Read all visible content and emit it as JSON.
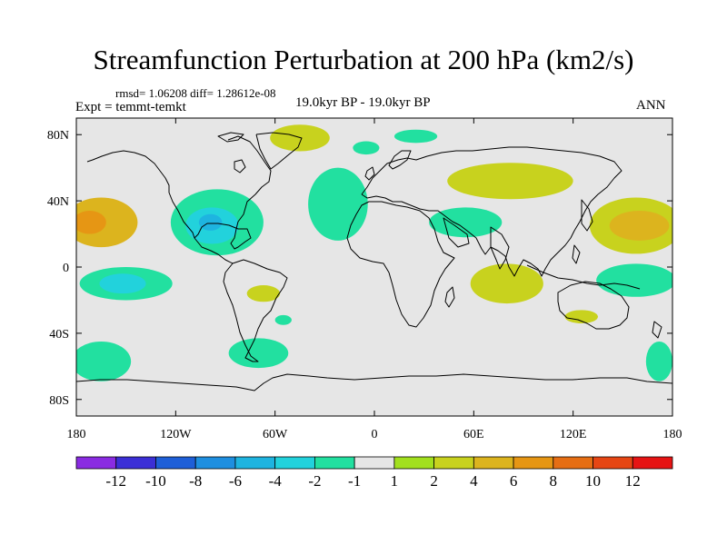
{
  "chart_data": {
    "type": "heatmap",
    "title": "Streamfunction Perturbation at 200 hPa (km2/s)",
    "stats_text": "rmsd= 1.06208 diff= 1.28612e-08",
    "experiment_text": "Expt = temmt-temkt",
    "period_text": "19.0kyr BP - 19.0kyr BP",
    "season_text": "ANN",
    "x_range": [
      -180,
      180
    ],
    "y_range": [
      -90,
      90
    ],
    "x_ticks": [
      {
        "value": -180,
        "label": "180"
      },
      {
        "value": -120,
        "label": "120W"
      },
      {
        "value": -60,
        "label": "60W"
      },
      {
        "value": 0,
        "label": "0"
      },
      {
        "value": 60,
        "label": "60E"
      },
      {
        "value": 120,
        "label": "120E"
      },
      {
        "value": 180,
        "label": "180"
      }
    ],
    "y_ticks": [
      {
        "value": 80,
        "label": "80N"
      },
      {
        "value": 40,
        "label": "40N"
      },
      {
        "value": 0,
        "label": "0"
      },
      {
        "value": -40,
        "label": "40S"
      },
      {
        "value": -80,
        "label": "80S"
      }
    ],
    "colorbar": {
      "colors": [
        "#8a2be2",
        "#3b2fd6",
        "#1e5fd8",
        "#1e8fe0",
        "#1eb4e0",
        "#22d2dc",
        "#22e0a0",
        "#e6e6e6",
        "#a2e01e",
        "#c8d21e",
        "#dcb41e",
        "#e69614",
        "#e66e14",
        "#e64614",
        "#e61414"
      ],
      "labels": [
        "-12",
        "-10",
        "-8",
        "-6",
        "-4",
        "-2",
        "-1",
        "1",
        "2",
        "4",
        "6",
        "8",
        "10",
        "12"
      ]
    },
    "anomaly_regions": [
      {
        "name": "N Pacific positive",
        "center": [
          -165,
          27
        ],
        "radius": [
          22,
          15
        ],
        "value": 4
      },
      {
        "name": "N Pacific core",
        "center": [
          -172,
          27
        ],
        "radius": [
          10,
          7
        ],
        "value": 6
      },
      {
        "name": "N America negative",
        "center": [
          -95,
          27
        ],
        "radius": [
          28,
          20
        ],
        "value": -2
      },
      {
        "name": "Gulf core",
        "center": [
          -98,
          25
        ],
        "radius": [
          16,
          11
        ],
        "value": -4
      },
      {
        "name": "Gulf center",
        "center": [
          -99,
          27
        ],
        "radius": [
          7,
          5
        ],
        "value": -6
      },
      {
        "name": "Greenland positive",
        "center": [
          -45,
          78
        ],
        "radius": [
          18,
          8
        ],
        "value": 2
      },
      {
        "name": "Atlantic negative",
        "center": [
          -22,
          38
        ],
        "radius": [
          18,
          22
        ],
        "value": -2
      },
      {
        "name": "N Atlantic strip",
        "center": [
          -5,
          72
        ],
        "radius": [
          8,
          4
        ],
        "value": -2
      },
      {
        "name": "Arctic Russia",
        "center": [
          25,
          79
        ],
        "radius": [
          13,
          4
        ],
        "value": -2
      },
      {
        "name": "Asia positive",
        "center": [
          82,
          52
        ],
        "radius": [
          38,
          11
        ],
        "value": 2
      },
      {
        "name": "Middle East negative",
        "center": [
          55,
          27
        ],
        "radius": [
          22,
          9
        ],
        "value": -2
      },
      {
        "name": "Japan positive",
        "center": [
          158,
          25
        ],
        "radius": [
          28,
          17
        ],
        "value": 2
      },
      {
        "name": "Japan core",
        "center": [
          160,
          25
        ],
        "radius": [
          18,
          9
        ],
        "value": 4
      },
      {
        "name": "Tropical Pacific negative",
        "center": [
          -150,
          -10
        ],
        "radius": [
          28,
          10
        ],
        "value": -2
      },
      {
        "name": "Tropical Pacific core",
        "center": [
          -152,
          -10
        ],
        "radius": [
          14,
          6
        ],
        "value": -4
      },
      {
        "name": "S America positive",
        "center": [
          -67,
          -16
        ],
        "radius": [
          10,
          5
        ],
        "value": 2
      },
      {
        "name": "Indian Ocean positive",
        "center": [
          80,
          -10
        ],
        "radius": [
          22,
          12
        ],
        "value": 2
      },
      {
        "name": "Australia N negative",
        "center": [
          158,
          -8
        ],
        "radius": [
          24,
          10
        ],
        "value": -2
      },
      {
        "name": "S Indian Ocean positive",
        "center": [
          125,
          -30
        ],
        "radius": [
          10,
          4
        ],
        "value": 2
      },
      {
        "name": "S Pacific negative",
        "center": [
          -165,
          -57
        ],
        "radius": [
          18,
          12
        ],
        "value": -2
      },
      {
        "name": "Drake negative",
        "center": [
          -70,
          -52
        ],
        "radius": [
          18,
          9
        ],
        "value": -2
      },
      {
        "name": "S Atlantic negative",
        "center": [
          -55,
          -32
        ],
        "radius": [
          5,
          3
        ],
        "value": -2
      },
      {
        "name": "S Ocean east negative",
        "center": [
          172,
          -57
        ],
        "radius": [
          8,
          12
        ],
        "value": -2
      }
    ]
  }
}
